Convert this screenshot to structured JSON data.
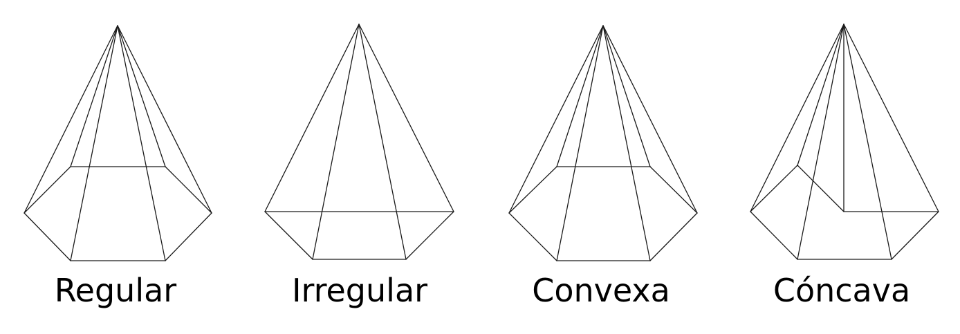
{
  "figures": [
    {
      "id": "regular",
      "label": "Regular"
    },
    {
      "id": "irregular",
      "label": "Irregular"
    },
    {
      "id": "convexa",
      "label": "Convexa"
    },
    {
      "id": "concava",
      "label": "Cóncava"
    }
  ],
  "colors": {
    "line": "#1a1a1a",
    "text": "#000000",
    "background": "#ffffff"
  }
}
